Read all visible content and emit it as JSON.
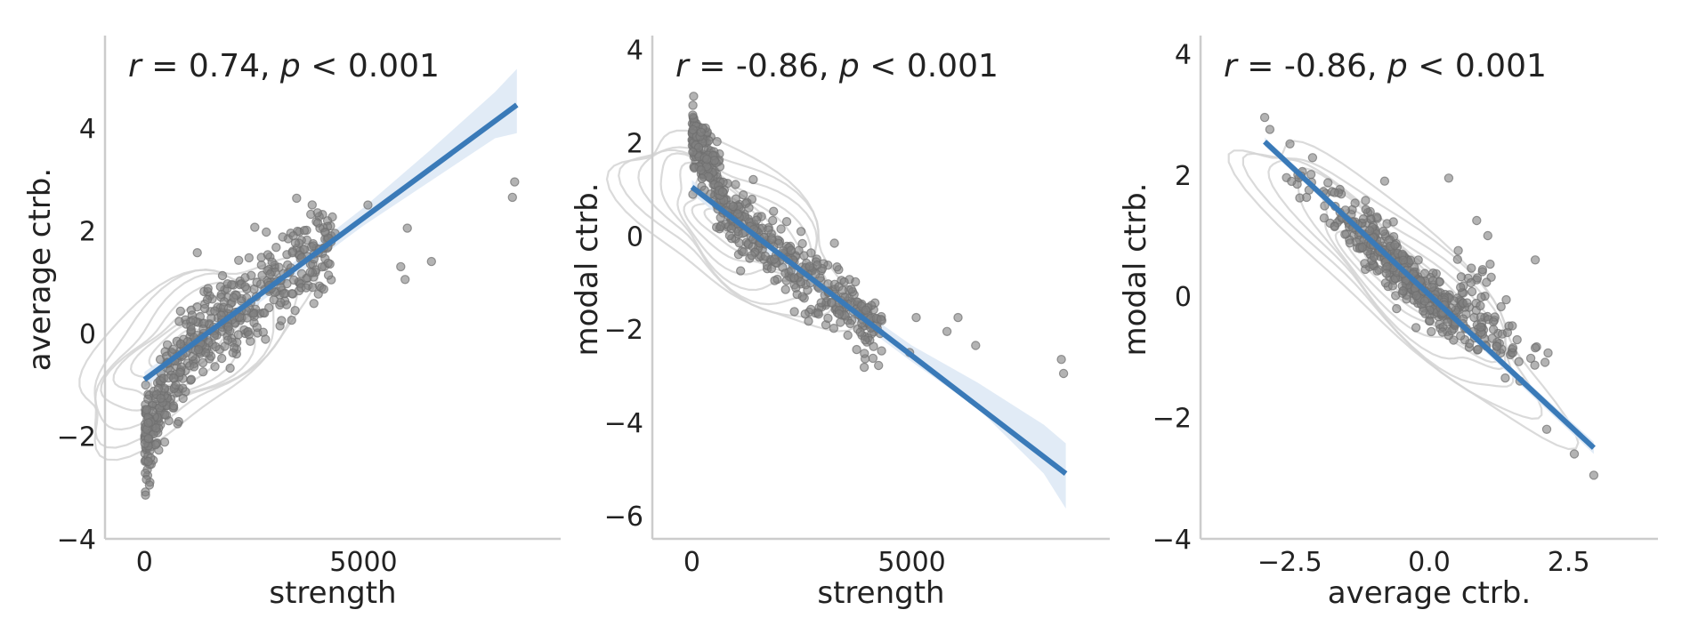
{
  "colors": {
    "regression_line": "#3a7ab8",
    "confidence_band": "#dce8f4",
    "scatter_points": "#808080",
    "kde_contours": "#d3d3d3",
    "axis": "#cccccc"
  },
  "chart_data": [
    {
      "type": "scatter",
      "annotation": {
        "prefix": "r",
        "stat": " = 0.74, ",
        "p": "p",
        "rest": " < 0.001"
      },
      "xlabel": "strength",
      "ylabel": "average ctrb.",
      "xlim": [
        -900,
        9500
      ],
      "ylim": [
        -4,
        5.8
      ],
      "xticks": [
        0,
        5000
      ],
      "xtick_labels": [
        "0",
        "5000"
      ],
      "yticks": [
        -4,
        -2,
        0,
        2,
        4
      ],
      "ytick_labels": [
        "−4",
        "−2",
        "0",
        "2",
        "4"
      ],
      "grid": false,
      "regression": {
        "x": [
          0,
          8500
        ],
        "y": [
          -0.9,
          4.45
        ]
      },
      "confidence_band": {
        "x": [
          0,
          2000,
          5000,
          6500,
          8000,
          8500
        ],
        "upper": [
          -0.75,
          0.45,
          2.45,
          3.55,
          4.7,
          5.15
        ],
        "lower": [
          -1.05,
          0.2,
          2.1,
          2.95,
          3.8,
          3.9
        ]
      },
      "kde_center": {
        "x": 1000,
        "y": -0.3
      },
      "kde_contours": 8,
      "outliers": [
        [
          3950,
          2.35
        ],
        [
          5100,
          2.5
        ],
        [
          6000,
          2.05
        ],
        [
          5850,
          1.3
        ],
        [
          5950,
          1.05
        ],
        [
          6550,
          1.4
        ],
        [
          8450,
          2.95
        ],
        [
          8400,
          2.65
        ],
        [
          4350,
          1.95
        ]
      ]
    },
    {
      "type": "scatter",
      "annotation": {
        "prefix": "r",
        "stat": " = -0.86, ",
        "p": "p",
        "rest": " < 0.001"
      },
      "xlabel": "strength",
      "ylabel": "modal ctrb.",
      "xlim": [
        -900,
        9500
      ],
      "ylim": [
        -6.5,
        4.3
      ],
      "xticks": [
        0,
        5000
      ],
      "xtick_labels": [
        "0",
        "5000"
      ],
      "yticks": [
        -6,
        -4,
        -2,
        0,
        2,
        4
      ],
      "ytick_labels": [
        "−6",
        "−4",
        "−2",
        "0",
        "2",
        "4"
      ],
      "grid": false,
      "regression": {
        "x": [
          0,
          8500
        ],
        "y": [
          1.05,
          -5.1
        ]
      },
      "confidence_band": {
        "x": [
          0,
          2000,
          5000,
          6500,
          8000,
          8500
        ],
        "upper": [
          1.2,
          -0.35,
          -2.35,
          -3.15,
          -4.05,
          -4.45
        ],
        "lower": [
          0.9,
          -0.6,
          -2.7,
          -3.7,
          -5.1,
          -5.85
        ]
      },
      "kde_center": {
        "x": 1000,
        "y": 0.2
      },
      "kde_contours": 8,
      "outliers": [
        [
          6050,
          -1.75
        ],
        [
          5800,
          -2.05
        ],
        [
          6450,
          -2.35
        ],
        [
          5100,
          -1.75
        ],
        [
          8400,
          -2.65
        ],
        [
          8450,
          -2.95
        ],
        [
          4950,
          -2.5
        ]
      ]
    },
    {
      "type": "scatter",
      "annotation": {
        "prefix": "r",
        "stat": " = -0.86, ",
        "p": "p",
        "rest": " < 0.001"
      },
      "xlabel": "average ctrb.",
      "ylabel": "modal ctrb.",
      "xlim": [
        -4.1,
        4.1
      ],
      "ylim": [
        -4,
        4.3
      ],
      "xticks": [
        -2.5,
        0,
        2.5
      ],
      "xtick_labels": [
        "−2.5",
        "0.0",
        "2.5"
      ],
      "yticks": [
        -4,
        -2,
        0,
        2,
        4
      ],
      "ytick_labels": [
        "−4",
        "−2",
        "0",
        "2",
        "4"
      ],
      "grid": false,
      "regression": {
        "x": [
          -2.95,
          2.95
        ],
        "y": [
          2.55,
          -2.5
        ]
      },
      "confidence_band": {
        "x": [
          -2.95,
          0,
          2.95
        ],
        "upper": [
          2.62,
          0.05,
          -2.4
        ],
        "lower": [
          2.48,
          -0.05,
          -2.6
        ]
      },
      "kde_center": {
        "x": -0.5,
        "y": 0.3
      },
      "kde_contours": 8,
      "outliers": [
        [
          -0.8,
          1.9
        ],
        [
          0.35,
          1.95
        ],
        [
          1.05,
          1.0
        ],
        [
          1.9,
          0.6
        ],
        [
          1.5,
          -0.85
        ],
        [
          1.9,
          -0.85
        ],
        [
          2.6,
          -2.6
        ],
        [
          2.95,
          -2.95
        ],
        [
          -2.95,
          2.95
        ],
        [
          0.85,
          1.25
        ]
      ]
    }
  ]
}
